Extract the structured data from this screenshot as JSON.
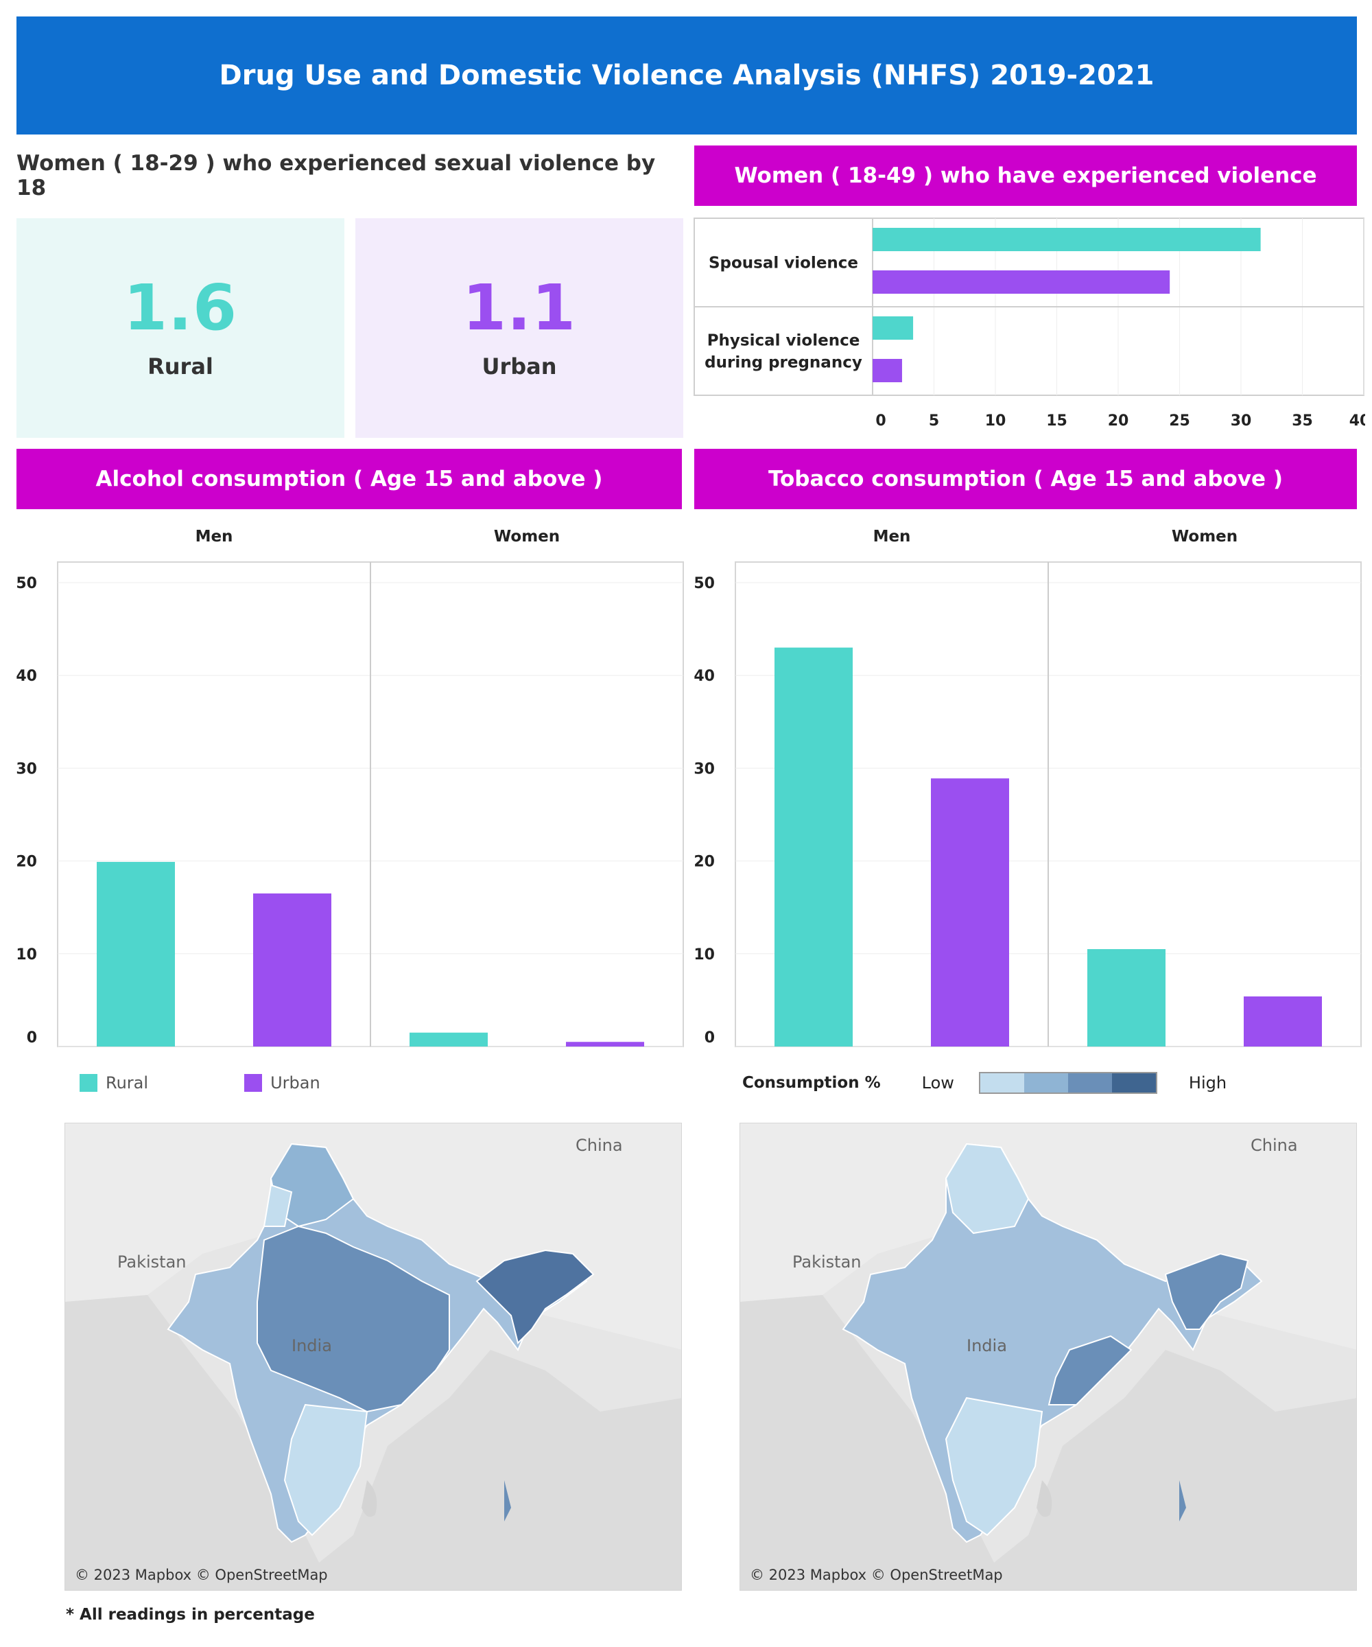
{
  "header": {
    "title": "Drug Use and Domestic Violence Analysis (NHFS) 2019-2021"
  },
  "sexual_violence": {
    "title": "Women ( 18-29 ) who experienced sexual violence by 18",
    "rural": {
      "value": "1.6",
      "label": "Rural"
    },
    "urban": {
      "value": "1.1",
      "label": "Urban"
    }
  },
  "violence": {
    "title": "Women ( 18-49 ) who have experienced violence"
  },
  "alcohol": {
    "title": "Alcohol consumption ( Age 15 and above )"
  },
  "tobacco": {
    "title": "Tobacco consumption  ( Age 15 and above )"
  },
  "legend": {
    "rural": "Rural",
    "urban": "Urban"
  },
  "color_legend": {
    "title": "Consumption %",
    "low": "Low",
    "high": "High"
  },
  "maps": {
    "country": "India",
    "pakistan": "Pakistan",
    "china": "China",
    "credit": "© 2023 Mapbox © OpenStreetMap"
  },
  "footnote": "* All readings in percentage",
  "colors": {
    "rural": "#4fd6cc",
    "urban": "#9b4ff0",
    "accent": "#cc00cc",
    "header": "#0f6fcf",
    "scale": [
      "#c3ddee",
      "#8fb4d4",
      "#6a8fb8",
      "#3f6590"
    ]
  },
  "chart_data": [
    {
      "type": "bar",
      "orientation": "horizontal",
      "title": "Women ( 18-49 ) who have experienced violence",
      "categories": [
        "Spousal violence",
        "Physical violence during pregnancy"
      ],
      "series": [
        {
          "name": "Rural",
          "values": [
            31.6,
            3.3
          ]
        },
        {
          "name": "Urban",
          "values": [
            24.2,
            2.4
          ]
        }
      ],
      "xlim": [
        0,
        40
      ],
      "xticks": [
        0,
        5,
        10,
        15,
        20,
        25,
        30,
        35,
        40
      ],
      "grid": true
    },
    {
      "type": "bar",
      "title": "Alcohol consumption ( Age 15 and above )",
      "facets": [
        "Men",
        "Women"
      ],
      "series": [
        {
          "name": "Rural",
          "values": [
            19.9,
            1.5
          ]
        },
        {
          "name": "Urban",
          "values": [
            16.5,
            0.5
          ]
        }
      ],
      "ylim": [
        0,
        50
      ],
      "yticks": [
        0,
        10,
        20,
        30,
        40,
        50
      ],
      "grid": true,
      "legend": "bottom-left"
    },
    {
      "type": "bar",
      "title": "Tobacco consumption  ( Age 15 and above )",
      "facets": [
        "Men",
        "Women"
      ],
      "series": [
        {
          "name": "Rural",
          "values": [
            43.0,
            10.5
          ]
        },
        {
          "name": "Urban",
          "values": [
            28.9,
            5.4
          ]
        }
      ],
      "ylim": [
        0,
        50
      ],
      "yticks": [
        0,
        10,
        20,
        30,
        40,
        50
      ],
      "grid": true
    }
  ]
}
